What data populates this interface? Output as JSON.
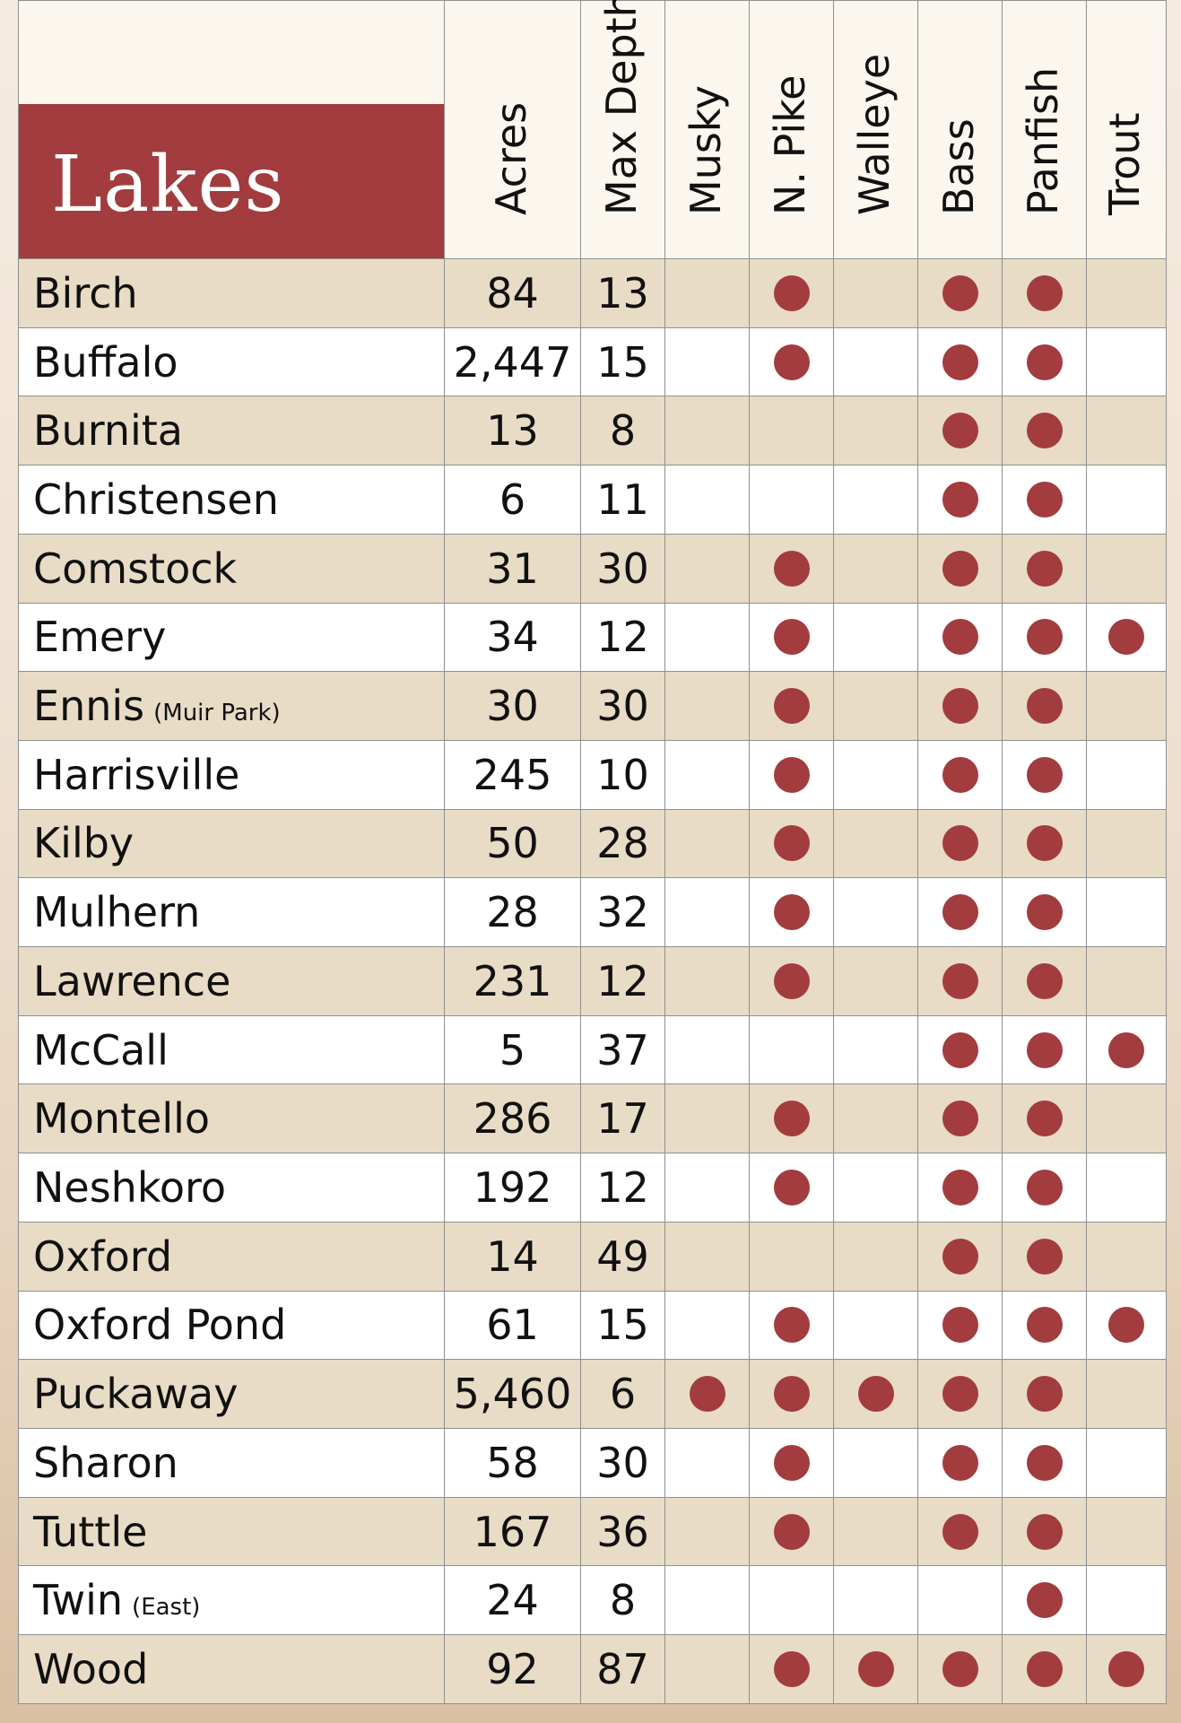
{
  "title": "Lakes",
  "columns": [
    "Acres",
    "Max Depth",
    "Musky",
    "N. Pike",
    "Walleye",
    "Bass",
    "Panfish",
    "Trout"
  ],
  "colors": {
    "header_bg": "#a23c3e",
    "dot": "#a23c3e",
    "shaded_row": "#e8dcc6"
  },
  "rows": [
    {
      "name": "Birch",
      "note": "",
      "acres": "84",
      "depth": "13",
      "fish": [
        false,
        true,
        false,
        true,
        true,
        false
      ]
    },
    {
      "name": "Buffalo",
      "note": "",
      "acres": "2,447",
      "depth": "15",
      "fish": [
        false,
        true,
        false,
        true,
        true,
        false
      ]
    },
    {
      "name": "Burnita",
      "note": "",
      "acres": "13",
      "depth": "8",
      "fish": [
        false,
        false,
        false,
        true,
        true,
        false
      ]
    },
    {
      "name": "Christensen",
      "note": "",
      "acres": "6",
      "depth": "11",
      "fish": [
        false,
        false,
        false,
        true,
        true,
        false
      ]
    },
    {
      "name": "Comstock",
      "note": "",
      "acres": "31",
      "depth": "30",
      "fish": [
        false,
        true,
        false,
        true,
        true,
        false
      ]
    },
    {
      "name": "Emery",
      "note": "",
      "acres": "34",
      "depth": "12",
      "fish": [
        false,
        true,
        false,
        true,
        true,
        true
      ]
    },
    {
      "name": "Ennis",
      "note": "(Muir Park)",
      "acres": "30",
      "depth": "30",
      "fish": [
        false,
        true,
        false,
        true,
        true,
        false
      ]
    },
    {
      "name": "Harrisville",
      "note": "",
      "acres": "245",
      "depth": "10",
      "fish": [
        false,
        true,
        false,
        true,
        true,
        false
      ]
    },
    {
      "name": "Kilby",
      "note": "",
      "acres": "50",
      "depth": "28",
      "fish": [
        false,
        true,
        false,
        true,
        true,
        false
      ]
    },
    {
      "name": "Mulhern",
      "note": "",
      "acres": "28",
      "depth": "32",
      "fish": [
        false,
        true,
        false,
        true,
        true,
        false
      ]
    },
    {
      "name": "Lawrence",
      "note": "",
      "acres": "231",
      "depth": "12",
      "fish": [
        false,
        true,
        false,
        true,
        true,
        false
      ]
    },
    {
      "name": "McCall",
      "note": "",
      "acres": "5",
      "depth": "37",
      "fish": [
        false,
        false,
        false,
        true,
        true,
        true
      ]
    },
    {
      "name": "Montello",
      "note": "",
      "acres": "286",
      "depth": "17",
      "fish": [
        false,
        true,
        false,
        true,
        true,
        false
      ]
    },
    {
      "name": "Neshkoro",
      "note": "",
      "acres": "192",
      "depth": "12",
      "fish": [
        false,
        true,
        false,
        true,
        true,
        false
      ]
    },
    {
      "name": "Oxford",
      "note": "",
      "acres": "14",
      "depth": "49",
      "fish": [
        false,
        false,
        false,
        true,
        true,
        false
      ]
    },
    {
      "name": "Oxford Pond",
      "note": "",
      "acres": "61",
      "depth": "15",
      "fish": [
        false,
        true,
        false,
        true,
        true,
        true
      ]
    },
    {
      "name": "Puckaway",
      "note": "",
      "acres": "5,460",
      "depth": "6",
      "fish": [
        true,
        true,
        true,
        true,
        true,
        false
      ]
    },
    {
      "name": "Sharon",
      "note": "",
      "acres": "58",
      "depth": "30",
      "fish": [
        false,
        true,
        false,
        true,
        true,
        false
      ]
    },
    {
      "name": "Tuttle",
      "note": "",
      "acres": "167",
      "depth": "36",
      "fish": [
        false,
        true,
        false,
        true,
        true,
        false
      ]
    },
    {
      "name": "Twin",
      "note": "(East)",
      "acres": "24",
      "depth": "8",
      "fish": [
        false,
        false,
        false,
        false,
        true,
        false
      ]
    },
    {
      "name": "Wood",
      "note": "",
      "acres": "92",
      "depth": "87",
      "fish": [
        false,
        true,
        true,
        true,
        true,
        true
      ]
    }
  ]
}
